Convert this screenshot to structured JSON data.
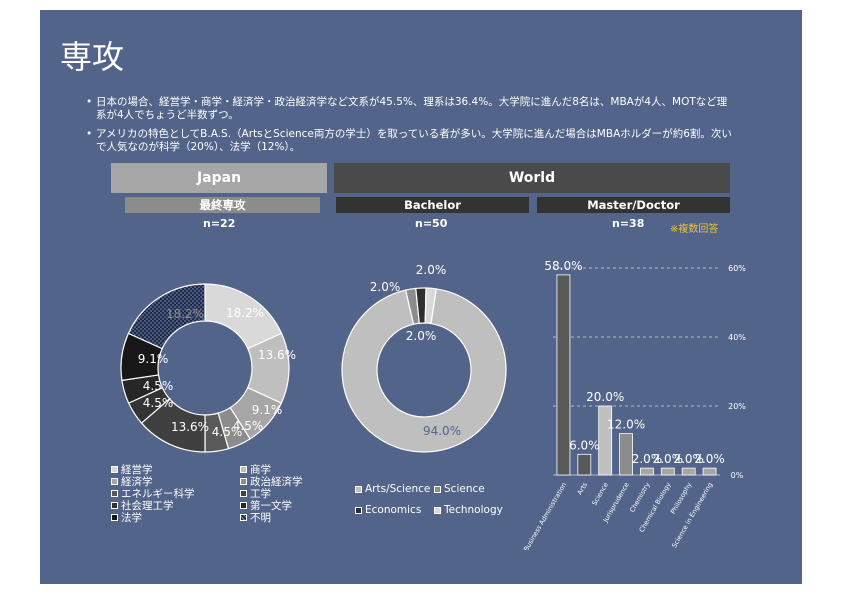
{
  "title": "専攻",
  "bullets": [
    "日本の場合、経営学・商学・経済学・政治経済学など文系が45.5%、理系は36.4%。大学院に進んだ8名は、MBAが4人、MOTなど理系が4人でちょうど半数ずつ。",
    "アメリカの特色としてB.A.S.（ArtsとScience両方の学士）を取っている者が多い。大学院に進んだ場合はMBAホルダーが約6割。次いで人気なのが科学（20%）、法学（12%）。"
  ],
  "headers": {
    "japan": "Japan",
    "world": "World"
  },
  "subheaders": {
    "japan": "最終専攻",
    "bachelor": "Bachelor",
    "master": "Master/Doctor"
  },
  "counts": {
    "japan": "n=22",
    "bachelor": "n=50",
    "master": "n=38"
  },
  "note": "※複数回答",
  "colors": {
    "background": "#526489",
    "gray_header": "#a6a6a6",
    "dark_header": "#4a4a4a",
    "note": "#f2c230"
  },
  "chart_data": [
    {
      "type": "pie",
      "variant": "donut",
      "categories": [
        "経営学",
        "商学",
        "経済学",
        "政治経済学",
        "エネルギー科学",
        "工学",
        "社会理工学",
        "第一文学",
        "法学",
        "不明"
      ],
      "values": [
        18.2,
        13.6,
        9.1,
        4.5,
        4.5,
        13.6,
        4.5,
        4.5,
        9.1,
        18.2
      ],
      "labels": [
        "18.2%",
        "13.6%",
        "9.1%",
        "4.5%",
        "4.5%",
        "13.6%",
        "4.5%",
        "4.5%",
        "9.1%",
        "18.2%"
      ],
      "colors": [
        "#d9d9d9",
        "#bfbfbf",
        "#a6a6a6",
        "#8c8c8c",
        "#595959",
        "#404040",
        "#333333",
        "#262626",
        "#171717",
        "#1f2b4a"
      ],
      "legend_position": "bottom"
    },
    {
      "type": "pie",
      "variant": "donut",
      "categories": [
        "Arts/Science",
        "Science",
        "Economics",
        "Technology"
      ],
      "values": [
        94.0,
        2.0,
        2.0,
        2.0
      ],
      "labels": [
        "94.0%",
        "2.0%",
        "2.0%",
        "2.0%"
      ],
      "colors": [
        "#bfbfbf",
        "#8c8c8c",
        "#2e2e2e",
        "#d9d9d9"
      ],
      "legend_position": "bottom"
    },
    {
      "type": "bar",
      "categories": [
        "Business Administration",
        "Arts",
        "Science",
        "Jurisprudence",
        "Chemistry",
        "Chemical Biology",
        "Philosophy",
        "Science in Engineering"
      ],
      "values": [
        58.0,
        6.0,
        20.0,
        12.0,
        2.0,
        2.0,
        2.0,
        2.0
      ],
      "labels": [
        "58.0%",
        "6.0%",
        "20.0%",
        "12.0%",
        "2.0%",
        "2.0%",
        "2.0%",
        "2.0%"
      ],
      "yticks": [
        "0%",
        "20%",
        "40%",
        "60%"
      ],
      "ylim": [
        0,
        60
      ],
      "grid": "dashed horizontal",
      "colors": [
        "#595959",
        "#595959",
        "#bfbfbf",
        "#8c8c8c",
        "#a6a6a6",
        "#a6a6a6",
        "#a6a6a6",
        "#a6a6a6"
      ]
    }
  ]
}
